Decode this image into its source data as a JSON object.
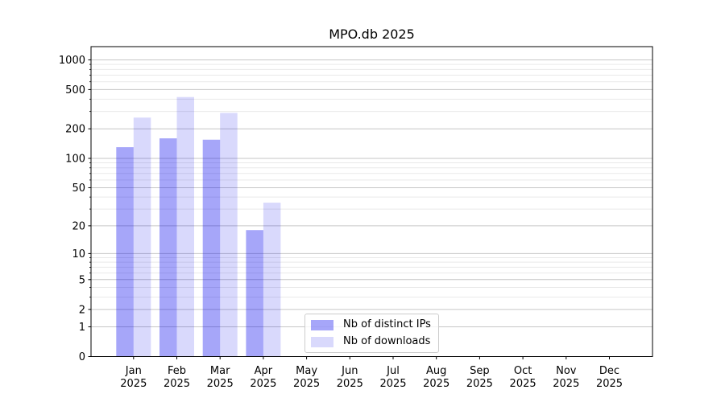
{
  "chart_data": {
    "type": "bar",
    "title": "MPO.db 2025",
    "categories": [
      "Jan",
      "Feb",
      "Mar",
      "Apr",
      "May",
      "Jun",
      "Jul",
      "Aug",
      "Sep",
      "Oct",
      "Nov",
      "Dec"
    ],
    "x_year_label": "2025",
    "series": [
      {
        "name": "Nb of distinct IPs",
        "color": "rgba(0,0,238,0.35)",
        "hex_on_white": "#a6a6f9",
        "values": [
          130,
          160,
          155,
          18,
          0,
          0,
          0,
          0,
          0,
          0,
          0,
          0
        ]
      },
      {
        "name": "Nb of downloads",
        "color": "rgba(0,0,238,0.15)",
        "hex_on_white": "#dcdcfb",
        "values": [
          260,
          420,
          290,
          35,
          0,
          0,
          0,
          0,
          0,
          0,
          0,
          0
        ]
      }
    ],
    "y_axis": {
      "scale": "log(1+v)",
      "major_ticks": [
        0,
        1,
        2,
        5,
        10,
        20,
        50,
        100,
        200,
        500,
        1000
      ],
      "minor_ticks": [
        3,
        4,
        6,
        7,
        8,
        9,
        30,
        40,
        60,
        70,
        80,
        90,
        300,
        400,
        600,
        700,
        800,
        900
      ],
      "range": [
        0,
        1350
      ]
    },
    "legend": {
      "position": "lower center",
      "entries": [
        "Nb of distinct IPs",
        "Nb of downloads"
      ]
    },
    "grid": "horizontal major and minor",
    "colors": {
      "major_grid": "#c6c6c6",
      "minor_grid": "#e9e9e9",
      "spine": "#000000",
      "tick_text": "#000000",
      "legend_border": "#cccccc"
    }
  }
}
